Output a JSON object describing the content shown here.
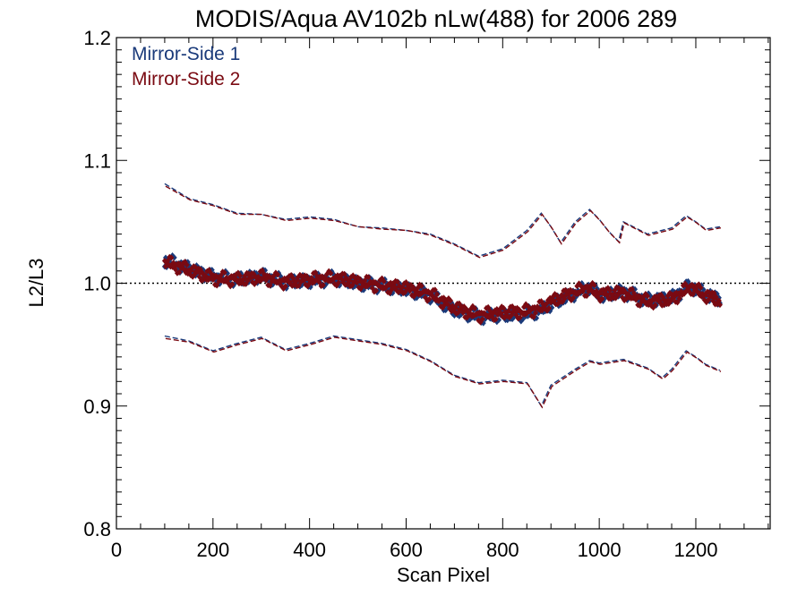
{
  "chart_data": {
    "type": "line",
    "title": "MODIS/Aqua AV102b nLw(488) for 2006 289",
    "xlabel": "Scan Pixel",
    "ylabel": "L2/L3",
    "xlim": [
      0,
      1354
    ],
    "ylim": [
      0.8,
      1.2
    ],
    "x_ticks": [
      0,
      200,
      400,
      600,
      800,
      1000,
      1200
    ],
    "x_tick_labels": [
      "0",
      "200",
      "400",
      "600",
      "800",
      "1000",
      "1200"
    ],
    "y_ticks": [
      0.8,
      0.9,
      1.0,
      1.1,
      1.2
    ],
    "y_tick_labels": [
      "0.8",
      "0.9",
      "1.0",
      "1.1",
      "1.2"
    ],
    "reference_line": 1.0,
    "grid": false,
    "legend_position": "top-left",
    "colors": {
      "mirror_side_1": "#1a3a7a",
      "mirror_side_2": "#7a0a12"
    },
    "series": [
      {
        "name": "Mirror-Side 1",
        "color": "#1a3a7a",
        "mean": {
          "x": [
            100,
            150,
            200,
            250,
            300,
            350,
            400,
            450,
            500,
            550,
            600,
            650,
            700,
            750,
            800,
            850,
            880,
            900,
            950,
            980,
            1000,
            1050,
            1100,
            1150,
            1190,
            1220,
            1250
          ],
          "y": [
            1.019,
            1.012,
            1.005,
            1.003,
            1.006,
            1.001,
            1.002,
            1.004,
            1.0,
            0.998,
            0.995,
            0.99,
            0.978,
            0.973,
            0.974,
            0.975,
            0.978,
            0.983,
            0.992,
            0.997,
            0.99,
            0.993,
            0.986,
            0.988,
            0.998,
            0.991,
            0.987
          ]
        },
        "upper": {
          "x": [
            100,
            150,
            200,
            250,
            300,
            350,
            400,
            450,
            500,
            550,
            600,
            650,
            700,
            750,
            800,
            850,
            880,
            900,
            920,
            950,
            980,
            1000,
            1020,
            1040,
            1050,
            1100,
            1150,
            1180,
            1200,
            1220,
            1250
          ],
          "y": [
            1.081,
            1.069,
            1.064,
            1.057,
            1.056,
            1.052,
            1.054,
            1.052,
            1.046,
            1.045,
            1.043,
            1.04,
            1.032,
            1.022,
            1.028,
            1.043,
            1.057,
            1.046,
            1.033,
            1.05,
            1.06,
            1.052,
            1.042,
            1.034,
            1.05,
            1.04,
            1.045,
            1.055,
            1.05,
            1.044,
            1.046
          ]
        },
        "lower": {
          "x": [
            100,
            150,
            200,
            250,
            300,
            350,
            400,
            450,
            500,
            550,
            600,
            650,
            700,
            750,
            800,
            850,
            880,
            900,
            950,
            980,
            1000,
            1050,
            1100,
            1130,
            1150,
            1180,
            1200,
            1220,
            1250
          ],
          "y": [
            0.957,
            0.953,
            0.945,
            0.951,
            0.956,
            0.946,
            0.951,
            0.957,
            0.954,
            0.951,
            0.946,
            0.937,
            0.925,
            0.919,
            0.921,
            0.919,
            0.9,
            0.917,
            0.93,
            0.937,
            0.935,
            0.938,
            0.931,
            0.923,
            0.93,
            0.945,
            0.94,
            0.934,
            0.929
          ]
        }
      },
      {
        "name": "Mirror-Side 2",
        "color": "#7a0a12",
        "mean": {
          "x": [
            100,
            150,
            200,
            250,
            300,
            350,
            400,
            450,
            500,
            550,
            600,
            650,
            700,
            750,
            800,
            850,
            880,
            900,
            950,
            980,
            1000,
            1050,
            1100,
            1150,
            1190,
            1220,
            1250
          ],
          "y": [
            1.017,
            1.011,
            1.004,
            1.003,
            1.005,
            1.001,
            1.003,
            1.004,
            1.001,
            0.998,
            0.996,
            0.991,
            0.98,
            0.974,
            0.976,
            0.977,
            0.98,
            0.985,
            0.993,
            0.996,
            0.991,
            0.992,
            0.985,
            0.987,
            0.997,
            0.99,
            0.986
          ]
        },
        "upper": {
          "x": [
            100,
            150,
            200,
            250,
            300,
            350,
            400,
            450,
            500,
            550,
            600,
            650,
            700,
            750,
            800,
            850,
            880,
            900,
            920,
            950,
            980,
            1000,
            1020,
            1040,
            1050,
            1100,
            1150,
            1180,
            1200,
            1220,
            1250
          ],
          "y": [
            1.079,
            1.068,
            1.063,
            1.056,
            1.056,
            1.051,
            1.053,
            1.051,
            1.046,
            1.044,
            1.043,
            1.039,
            1.031,
            1.021,
            1.027,
            1.042,
            1.056,
            1.045,
            1.032,
            1.049,
            1.059,
            1.051,
            1.041,
            1.033,
            1.049,
            1.039,
            1.044,
            1.054,
            1.049,
            1.043,
            1.045
          ]
        },
        "lower": {
          "x": [
            100,
            150,
            200,
            250,
            300,
            350,
            400,
            450,
            500,
            550,
            600,
            650,
            700,
            750,
            800,
            850,
            880,
            900,
            950,
            980,
            1000,
            1050,
            1100,
            1130,
            1150,
            1180,
            1200,
            1220,
            1250
          ],
          "y": [
            0.955,
            0.952,
            0.944,
            0.95,
            0.955,
            0.945,
            0.95,
            0.956,
            0.953,
            0.95,
            0.945,
            0.936,
            0.924,
            0.918,
            0.92,
            0.918,
            0.899,
            0.916,
            0.929,
            0.936,
            0.934,
            0.937,
            0.93,
            0.922,
            0.929,
            0.944,
            0.939,
            0.933,
            0.928
          ]
        }
      }
    ]
  }
}
